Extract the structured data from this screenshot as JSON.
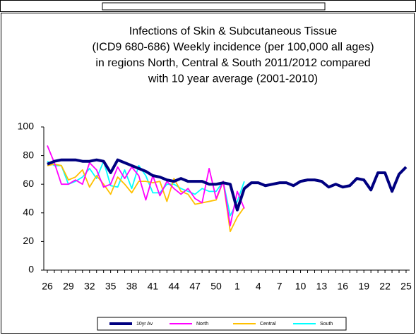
{
  "chart_data": {
    "type": "line",
    "title": [
      "Infections of Skin & Subcutaneous Tissue",
      "(ICD9 680-686) Weekly incidence (per 100,000 all ages)",
      "in regions North, Central & South 2011/2012 compared",
      "with 10 year average (2001-2010)"
    ],
    "categories": [
      "26",
      null,
      null,
      "29",
      null,
      null,
      "32",
      null,
      null,
      "35",
      null,
      null,
      "38",
      null,
      null,
      "41",
      null,
      null,
      "44",
      null,
      null,
      "47",
      null,
      null,
      "50",
      null,
      null,
      "1",
      null,
      null,
      "4",
      null,
      null,
      "7",
      null,
      null,
      "10",
      null,
      null,
      "13",
      null,
      null,
      "16",
      null,
      null,
      "19",
      null,
      null,
      "22",
      null,
      null,
      "25"
    ],
    "ylim": [
      0,
      100
    ],
    "yticks": [
      0,
      20,
      40,
      60,
      80,
      100
    ],
    "series": [
      {
        "name": "10yr Av",
        "color": "#000080",
        "values": [
          74,
          76,
          77,
          77,
          77,
          76,
          76,
          77,
          76,
          68,
          77,
          75,
          73,
          71,
          69,
          66,
          65,
          63,
          62,
          64,
          62,
          62,
          62,
          60,
          60,
          61,
          60,
          42,
          57,
          61,
          61,
          59,
          60,
          61,
          61,
          59,
          62,
          63,
          63,
          62,
          58,
          60,
          58,
          59,
          64,
          63,
          56,
          68,
          68,
          55,
          67,
          72
        ]
      },
      {
        "name": "North",
        "color": "#ff00ff",
        "values": [
          87,
          75,
          60,
          60,
          63,
          60,
          75,
          70,
          58,
          60,
          72,
          64,
          72,
          66,
          49,
          66,
          52,
          62,
          57,
          53,
          57,
          50,
          47,
          71,
          50,
          62,
          31,
          55,
          43,
          null,
          null,
          null,
          null,
          null,
          null,
          null,
          null,
          null,
          null,
          null,
          null,
          null,
          null,
          null,
          null,
          null,
          null,
          null,
          null,
          null,
          null,
          null
        ]
      },
      {
        "name": "Central",
        "color": "#ffc000",
        "values": [
          73,
          74,
          73,
          63,
          65,
          70,
          58,
          66,
          60,
          53,
          65,
          60,
          54,
          62,
          62,
          61,
          62,
          48,
          64,
          55,
          53,
          46,
          47,
          48,
          49,
          62,
          27,
          37,
          44,
          null,
          null,
          null,
          null,
          null,
          null,
          null,
          null,
          null,
          null,
          null,
          null,
          null,
          null,
          null,
          null,
          null,
          null,
          null,
          null,
          null,
          null,
          null
        ]
      },
      {
        "name": "South",
        "color": "#00ffff",
        "values": [
          76,
          73,
          73,
          60,
          62,
          65,
          71,
          64,
          76,
          59,
          58,
          70,
          57,
          73,
          66,
          54,
          54,
          60,
          60,
          57,
          55,
          53,
          57,
          55,
          55,
          62,
          38,
          48,
          62,
          null,
          null,
          null,
          null,
          null,
          null,
          null,
          null,
          null,
          null,
          null,
          null,
          null,
          null,
          null,
          null,
          null,
          null,
          null,
          null,
          null,
          null,
          null
        ]
      }
    ]
  }
}
